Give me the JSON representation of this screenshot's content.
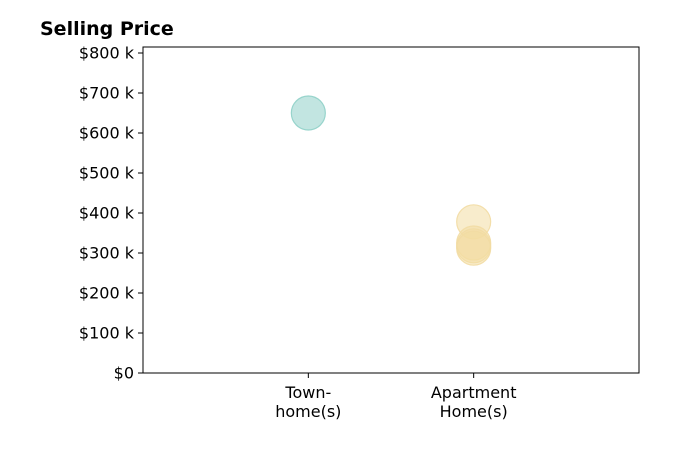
{
  "chart_data": {
    "type": "scatter",
    "title": "Selling Price",
    "xlabel": "",
    "ylabel": "",
    "categories": [
      [
        "Town-",
        "home(s)"
      ],
      [
        "Apartment",
        "Home(s)"
      ]
    ],
    "xlim": [
      -1,
      2
    ],
    "ylim": [
      0,
      815000
    ],
    "y_ticks": [
      {
        "value": 0,
        "label": "$0"
      },
      {
        "value": 100000,
        "label": "$100 k"
      },
      {
        "value": 200000,
        "label": "$200 k"
      },
      {
        "value": 300000,
        "label": "$300 k"
      },
      {
        "value": 400000,
        "label": "$400 k"
      },
      {
        "value": 500000,
        "label": "$500 k"
      },
      {
        "value": 600000,
        "label": "$600 k"
      },
      {
        "value": 700000,
        "label": "$700 k"
      },
      {
        "value": 800000,
        "label": "$800 k"
      }
    ],
    "grid": false,
    "legend": "none",
    "points": [
      {
        "category": 0,
        "value": 650000,
        "color": "#8fd0c8"
      },
      {
        "category": 1,
        "value": 378000,
        "color": "#f2dca3"
      },
      {
        "category": 1,
        "value": 325000,
        "color": "#f2dca3"
      },
      {
        "category": 1,
        "value": 318000,
        "color": "#f2dca3"
      },
      {
        "category": 1,
        "value": 312000,
        "color": "#f2dca3"
      }
    ],
    "colors": {
      "townhome": "#8fd0c8",
      "apartment": "#f2dca3",
      "marker_opacity": 0.55
    }
  }
}
